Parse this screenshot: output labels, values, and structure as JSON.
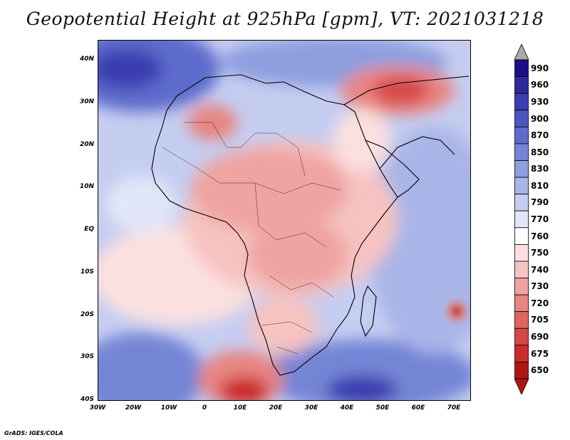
{
  "title": "Geopotential Height at 925hPa [gpm], VT: 2021031218",
  "credit": "GrADS: IGES/COLA",
  "x_ticks": [
    "30W",
    "20W",
    "10W",
    "0",
    "10E",
    "20E",
    "30E",
    "40E",
    "50E",
    "60E",
    "70E"
  ],
  "y_ticks": [
    "40N",
    "30N",
    "20N",
    "10N",
    "EQ",
    "10S",
    "20S",
    "30S",
    "40S"
  ],
  "colorbar": {
    "levels": [
      "990",
      "960",
      "930",
      "900",
      "870",
      "850",
      "830",
      "810",
      "790",
      "770",
      "760",
      "750",
      "740",
      "730",
      "720",
      "705",
      "690",
      "675",
      "650"
    ],
    "colors": [
      "#1a0f8a",
      "#2e2a9e",
      "#3b3db0",
      "#4b55c0",
      "#5d6ccc",
      "#7585d6",
      "#8e9edf",
      "#a9b5e8",
      "#c5cdf1",
      "#e1e6f8",
      "#ffffff",
      "#fbe0df",
      "#f6c3c1",
      "#efa4a2",
      "#e88583",
      "#df6563",
      "#d64745",
      "#c92c2b",
      "#b01515"
    ]
  },
  "chart_data": {
    "type": "heatmap",
    "title": "Geopotential Height at 925hPa [gpm], VT: 2021031218",
    "variable": "Geopotential Height",
    "level_hPa": 925,
    "units": "gpm",
    "valid_time": "2021031218",
    "lon_range": [
      -30,
      75
    ],
    "lat_range": [
      -40,
      45
    ],
    "contour_levels": [
      650,
      675,
      690,
      705,
      720,
      730,
      740,
      750,
      760,
      770,
      790,
      810,
      830,
      850,
      870,
      900,
      930,
      960,
      990
    ]
  }
}
